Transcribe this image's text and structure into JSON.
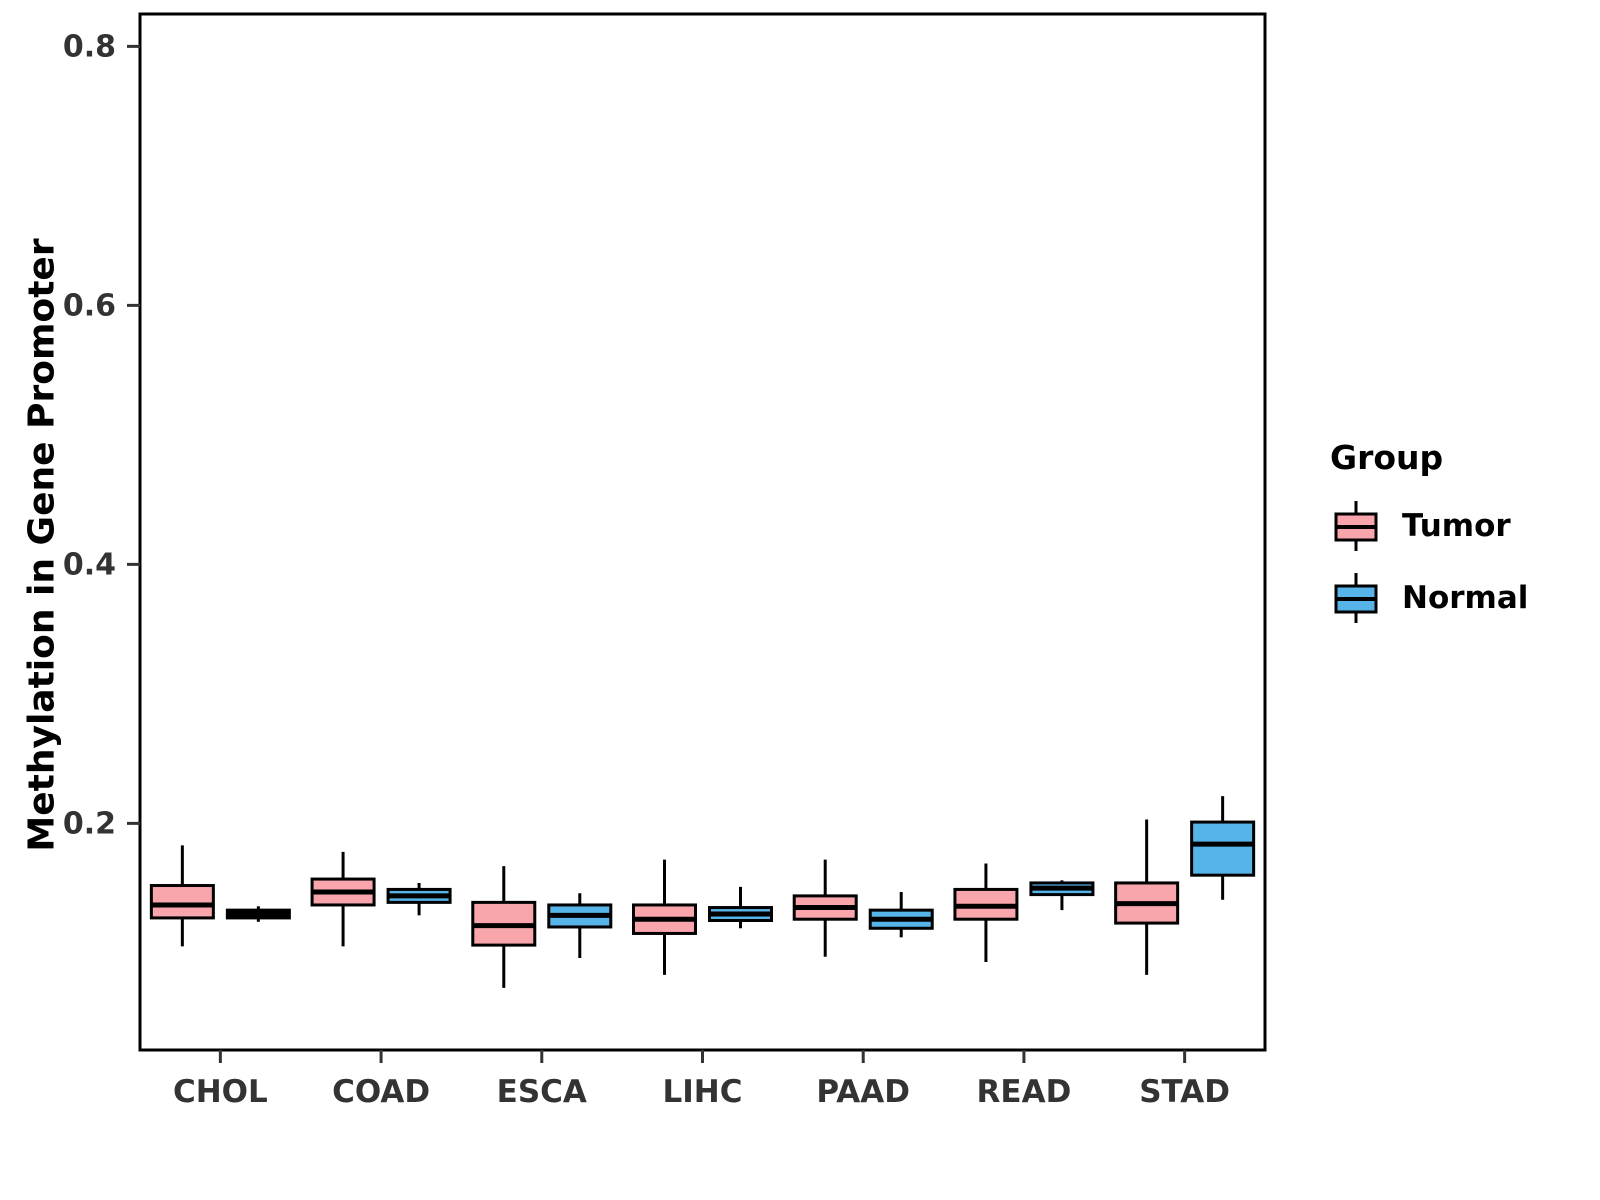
{
  "chart_data": {
    "type": "boxplot",
    "title": "",
    "ylabel": "Methylation in Gene Promoter",
    "xlabel": "",
    "categories": [
      "CHOL",
      "COAD",
      "ESCA",
      "LIHC",
      "PAAD",
      "READ",
      "STAD"
    ],
    "ylim": [
      0.025,
      0.825
    ],
    "yticks": [
      0.2,
      0.4,
      0.6,
      0.8
    ],
    "grid": false,
    "legend": {
      "title": "Group",
      "position": "right",
      "entries": [
        {
          "label": "Tumor",
          "color": "#F8A5AC"
        },
        {
          "label": "Normal",
          "color": "#56B4E9"
        }
      ]
    },
    "series": [
      {
        "name": "Tumor",
        "color": "#F8A5AC",
        "boxes": [
          {
            "low": 0.105,
            "q1": 0.127,
            "median": 0.137,
            "q3": 0.152,
            "high": 0.183
          },
          {
            "low": 0.105,
            "q1": 0.137,
            "median": 0.147,
            "q3": 0.157,
            "high": 0.178
          },
          {
            "low": 0.073,
            "q1": 0.106,
            "median": 0.121,
            "q3": 0.139,
            "high": 0.167
          },
          {
            "low": 0.083,
            "q1": 0.115,
            "median": 0.126,
            "q3": 0.137,
            "high": 0.172
          },
          {
            "low": 0.097,
            "q1": 0.126,
            "median": 0.135,
            "q3": 0.144,
            "high": 0.172
          },
          {
            "low": 0.093,
            "q1": 0.126,
            "median": 0.136,
            "q3": 0.149,
            "high": 0.169
          },
          {
            "low": 0.083,
            "q1": 0.123,
            "median": 0.138,
            "q3": 0.154,
            "high": 0.203
          }
        ]
      },
      {
        "name": "Normal",
        "color": "#56B4E9",
        "boxes": [
          {
            "low": 0.124,
            "q1": 0.127,
            "median": 0.13,
            "q3": 0.133,
            "high": 0.136
          },
          {
            "low": 0.129,
            "q1": 0.139,
            "median": 0.144,
            "q3": 0.149,
            "high": 0.154
          },
          {
            "low": 0.096,
            "q1": 0.12,
            "median": 0.129,
            "q3": 0.137,
            "high": 0.146
          },
          {
            "low": 0.119,
            "q1": 0.125,
            "median": 0.13,
            "q3": 0.135,
            "high": 0.151
          },
          {
            "low": 0.112,
            "q1": 0.119,
            "median": 0.126,
            "q3": 0.133,
            "high": 0.147
          },
          {
            "low": 0.133,
            "q1": 0.145,
            "median": 0.15,
            "q3": 0.154,
            "high": 0.156
          },
          {
            "low": 0.141,
            "q1": 0.16,
            "median": 0.184,
            "q3": 0.201,
            "high": 0.221
          }
        ]
      }
    ]
  }
}
